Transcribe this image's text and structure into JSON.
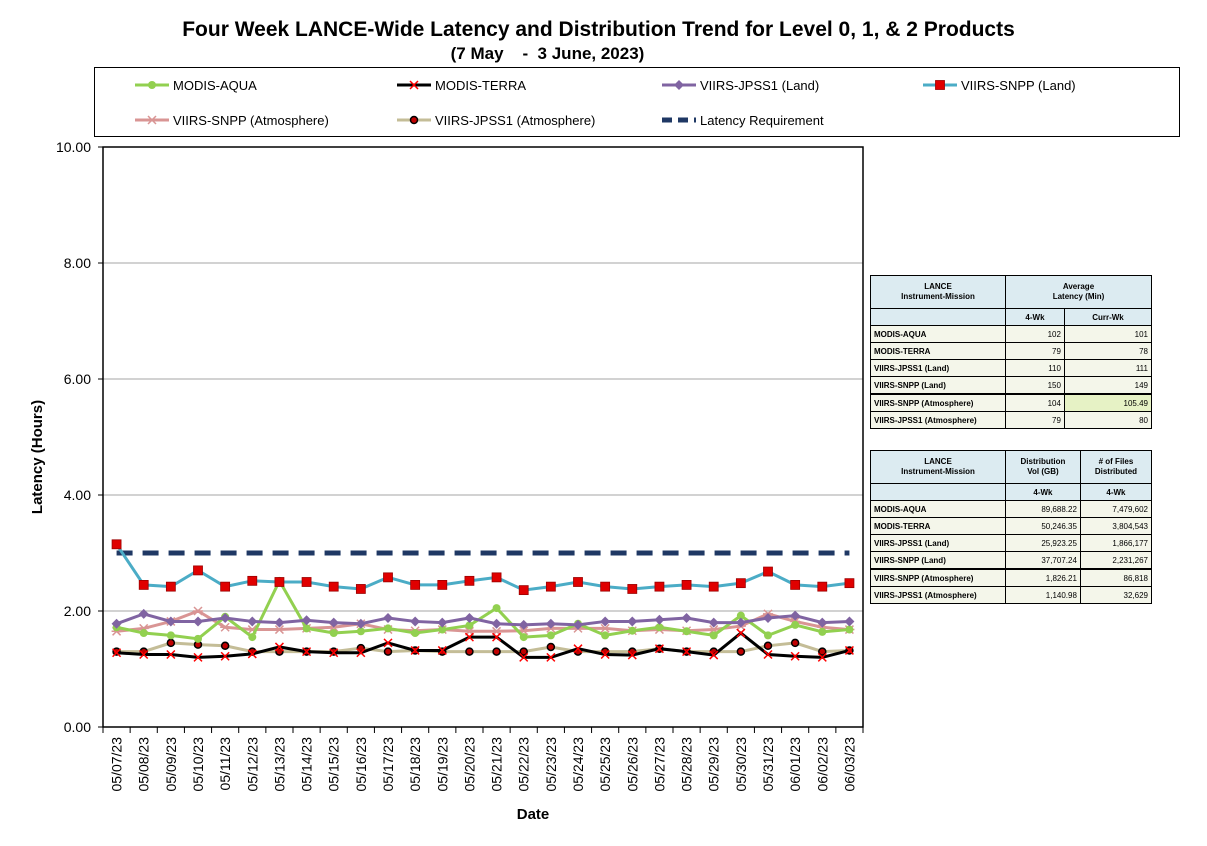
{
  "title": "Four Week LANCE-Wide Latency and Distribution Trend for Level 0, 1, & 2 Products",
  "subtitle": "(7 May    -  3 June, 2023)",
  "chart_data": {
    "type": "line",
    "xlabel": "Date",
    "ylabel": "Latency (Hours)",
    "ylim": [
      0,
      10
    ],
    "yticks": [
      "0.00",
      "2.00",
      "4.00",
      "6.00",
      "8.00",
      "10.00"
    ],
    "grid": true,
    "legend": "top",
    "x": [
      "05/07/23",
      "05/08/23",
      "05/09/23",
      "05/10/23",
      "05/11/23",
      "05/12/23",
      "05/13/23",
      "05/14/23",
      "05/15/23",
      "05/16/23",
      "05/17/23",
      "05/18/23",
      "05/19/23",
      "05/20/23",
      "05/21/23",
      "05/22/23",
      "05/23/23",
      "05/24/23",
      "05/25/23",
      "05/26/23",
      "05/27/23",
      "05/28/23",
      "05/29/23",
      "05/30/23",
      "05/31/23",
      "06/01/23",
      "06/02/23",
      "06/03/23"
    ],
    "series": [
      {
        "name": "MODIS-AQUA",
        "color": "#92d050",
        "marker": "circle",
        "values": [
          1.72,
          1.62,
          1.58,
          1.52,
          1.9,
          1.55,
          2.52,
          1.7,
          1.62,
          1.65,
          1.7,
          1.62,
          1.68,
          1.75,
          2.05,
          1.55,
          1.58,
          1.78,
          1.58,
          1.66,
          1.72,
          1.65,
          1.58,
          1.92,
          1.58,
          1.76,
          1.64,
          1.68
        ]
      },
      {
        "name": "MODIS-TERRA",
        "color": "#000000",
        "marker": "x",
        "values": [
          1.28,
          1.25,
          1.25,
          1.2,
          1.22,
          1.26,
          1.38,
          1.3,
          1.28,
          1.28,
          1.45,
          1.32,
          1.32,
          1.55,
          1.55,
          1.2,
          1.2,
          1.35,
          1.25,
          1.24,
          1.35,
          1.3,
          1.24,
          1.62,
          1.25,
          1.22,
          1.2,
          1.32
        ]
      },
      {
        "name": "VIIRS-JPSS1 (Land)",
        "color": "#8064a2",
        "marker": "diamond",
        "values": [
          1.78,
          1.95,
          1.82,
          1.82,
          1.88,
          1.82,
          1.8,
          1.84,
          1.8,
          1.78,
          1.88,
          1.82,
          1.8,
          1.88,
          1.78,
          1.76,
          1.78,
          1.76,
          1.82,
          1.82,
          1.85,
          1.88,
          1.8,
          1.8,
          1.88,
          1.92,
          1.8,
          1.82
        ]
      },
      {
        "name": "VIIRS-SNPP (Land)",
        "color": "#4bacc6",
        "marker": "square",
        "values": [
          3.15,
          2.45,
          2.42,
          2.7,
          2.42,
          2.52,
          2.5,
          2.5,
          2.42,
          2.38,
          2.58,
          2.45,
          2.45,
          2.52,
          2.58,
          2.36,
          2.42,
          2.5,
          2.42,
          2.38,
          2.42,
          2.45,
          2.42,
          2.48,
          2.68,
          2.45,
          2.42,
          2.48
        ]
      },
      {
        "name": "VIIRS-SNPP (Atmosphere)",
        "color": "#d99594",
        "marker": "star",
        "values": [
          1.65,
          1.7,
          1.82,
          2.0,
          1.72,
          1.68,
          1.68,
          1.7,
          1.72,
          1.78,
          1.68,
          1.66,
          1.68,
          1.65,
          1.65,
          1.66,
          1.7,
          1.7,
          1.7,
          1.66,
          1.68,
          1.66,
          1.68,
          1.74,
          1.95,
          1.82,
          1.72,
          1.68
        ]
      },
      {
        "name": "VIIRS-JPSS1 (Atmosphere)",
        "color": "#c4bd97",
        "marker": "dot",
        "values": [
          1.3,
          1.3,
          1.45,
          1.42,
          1.4,
          1.3,
          1.3,
          1.3,
          1.3,
          1.36,
          1.3,
          1.32,
          1.3,
          1.3,
          1.3,
          1.3,
          1.38,
          1.3,
          1.3,
          1.3,
          1.35,
          1.3,
          1.3,
          1.3,
          1.4,
          1.45,
          1.3,
          1.32
        ]
      },
      {
        "name": "Latency Requirement",
        "color": "#1f3864",
        "marker": "dash",
        "values": [
          3,
          3,
          3,
          3,
          3,
          3,
          3,
          3,
          3,
          3,
          3,
          3,
          3,
          3,
          3,
          3,
          3,
          3,
          3,
          3,
          3,
          3,
          3,
          3,
          3,
          3,
          3,
          3
        ]
      }
    ]
  },
  "latency_table": {
    "header1": "LANCE\nInstrument-Mission",
    "header2": "Average\nLatency (Min)",
    "sub1": "4-Wk",
    "sub2": "Curr-Wk",
    "rows": [
      {
        "label": "MODIS-AQUA",
        "a": "102",
        "b": "101"
      },
      {
        "label": "MODIS-TERRA",
        "a": "79",
        "b": "78"
      },
      {
        "label": "VIIRS-JPSS1 (Land)",
        "a": "110",
        "b": "111"
      },
      {
        "label": "VIIRS-SNPP (Land)",
        "a": "150",
        "b": "149"
      },
      {
        "label": "VIIRS-SNPP (Atmosphere)",
        "a": "104",
        "b": "105.49"
      },
      {
        "label": "VIIRS-JPSS1 (Atmosphere)",
        "a": "79",
        "b": "80"
      }
    ]
  },
  "distribution_table": {
    "header1": "LANCE\nInstrument-Mission",
    "header2": "Distribution\nVol (GB)",
    "header3": "# of Files\nDistributed",
    "sub1": "4-Wk",
    "sub2": "4-Wk",
    "rows": [
      {
        "label": "MODIS-AQUA",
        "a": "89,688.22",
        "b": "7,479,602"
      },
      {
        "label": "MODIS-TERRA",
        "a": "50,246.35",
        "b": "3,804,543"
      },
      {
        "label": "VIIRS-JPSS1 (Land)",
        "a": "25,923.25",
        "b": "1,866,177"
      },
      {
        "label": "VIIRS-SNPP (Land)",
        "a": "37,707.24",
        "b": "2,231,267"
      },
      {
        "label": "VIIRS-SNPP (Atmosphere)",
        "a": "1,826.21",
        "b": "86,818"
      },
      {
        "label": "VIIRS-JPSS1 (Atmosphere)",
        "a": "1,140.98",
        "b": "32,629"
      }
    ]
  }
}
